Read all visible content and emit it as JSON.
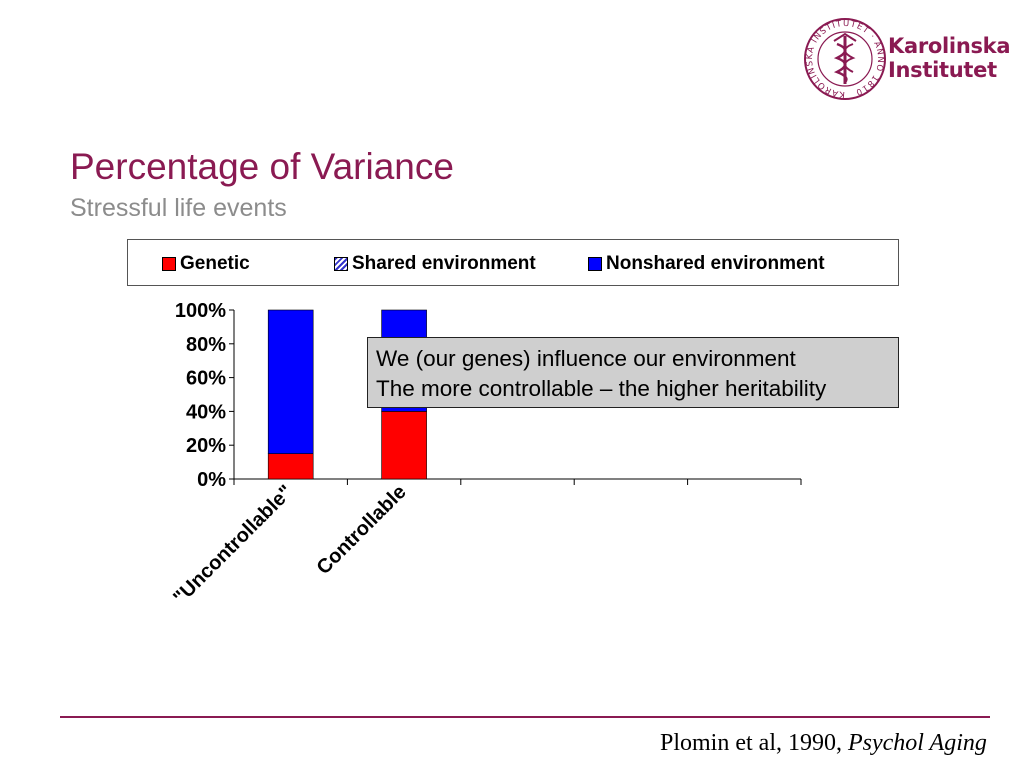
{
  "logo": {
    "seal_text": "KAROLINSKA INSTITUTET · ANNO 1810",
    "name_line1": "Karolinska",
    "name_line2": "Institutet",
    "brand_color": "#8a1a52"
  },
  "header": {
    "title": "Percentage of Variance",
    "subtitle": "Stressful life events"
  },
  "legend": {
    "items": [
      {
        "label": "Genetic",
        "color": "#ff0000"
      },
      {
        "label": "Shared environment",
        "color": "#3333cc",
        "pattern": "hatched"
      },
      {
        "label": "Nonshared environment",
        "color": "#0000ff"
      }
    ]
  },
  "callout": {
    "line1": "We (our genes) influence our environment",
    "line2": "The more controllable – the higher heritability"
  },
  "citation": {
    "text": "Plomin et al, 1990, ",
    "journal": "Psychol Aging"
  },
  "chart_data": {
    "type": "bar",
    "stacked": true,
    "categories": [
      "\"Uncontrollable\"",
      "Controllable",
      "",
      "",
      ""
    ],
    "series": [
      {
        "name": "Genetic",
        "values": [
          15,
          40,
          null,
          null,
          null
        ],
        "color": "#ff0000"
      },
      {
        "name": "Shared environment",
        "values": [
          0,
          0,
          null,
          null,
          null
        ],
        "color": "#3333cc"
      },
      {
        "name": "Nonshared environment",
        "values": [
          85,
          60,
          null,
          null,
          null
        ],
        "color": "#0000ff"
      }
    ],
    "ylim": [
      0,
      100
    ],
    "yticks": [
      "0%",
      "20%",
      "40%",
      "60%",
      "80%",
      "100%"
    ],
    "ytick_values": [
      0,
      20,
      40,
      60,
      80,
      100
    ],
    "legend_position": "top",
    "grid": false
  }
}
